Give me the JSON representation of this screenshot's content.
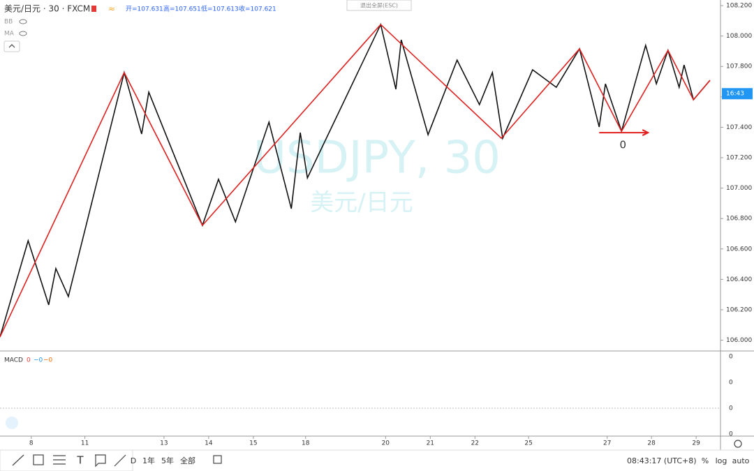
{
  "header": {
    "symbol": "美元/日元 · 30 · FXCM",
    "ohlc": [
      "开=107.631",
      "高=107.651",
      "低=107.613",
      "收=107.621"
    ],
    "indicators": [
      "BB",
      "MA"
    ],
    "exit_fullscreen": "退出全屏(ESC)"
  },
  "chart_data": {
    "type": "line",
    "watermark": "USDJPY, 30",
    "watermark_sub": "美元/日元",
    "xlim": [
      0,
      16.125
    ],
    "ylim": [
      105.929,
      108.237
    ],
    "xticks": [
      {
        "value": 0.7,
        "label": "8"
      },
      {
        "value": 1.9,
        "label": "11"
      },
      {
        "value": 3.67,
        "label": "13"
      },
      {
        "value": 4.67,
        "label": "14"
      },
      {
        "value": 5.67,
        "label": "15"
      },
      {
        "value": 6.84,
        "label": "18"
      },
      {
        "value": 8.63,
        "label": "20"
      },
      {
        "value": 9.63,
        "label": "21"
      },
      {
        "value": 10.63,
        "label": "22"
      },
      {
        "value": 11.83,
        "label": "25"
      },
      {
        "value": 13.59,
        "label": "27"
      },
      {
        "value": 14.58,
        "label": "28"
      },
      {
        "value": 15.58,
        "label": "29"
      }
    ],
    "yticks": [
      {
        "value": 106,
        "label": "106.000"
      },
      {
        "value": 106.2,
        "label": "106.200"
      },
      {
        "value": 106.4,
        "label": "106.400"
      },
      {
        "value": 106.6,
        "label": "106.600"
      },
      {
        "value": 106.8,
        "label": "106.800"
      },
      {
        "value": 107,
        "label": "107.000"
      },
      {
        "value": 107.2,
        "label": "107.200"
      },
      {
        "value": 107.4,
        "label": "107.400"
      },
      {
        "value": 107.6,
        "label": "107.600"
      },
      {
        "value": 107.8,
        "label": "107.800"
      },
      {
        "value": 108,
        "label": "108.000"
      },
      {
        "value": 108.2,
        "label": "108.200"
      }
    ],
    "series": [
      {
        "color": "#111111",
        "x": [
          0,
          0.63,
          1.09,
          1.25,
          1.53,
          2.78,
          3.17,
          3.33,
          4.53,
          4.89,
          5.27,
          6.02,
          6.52,
          6.72,
          6.88,
          8.52,
          8.86,
          8.98,
          9.58,
          10.23,
          10.73,
          11.02,
          11.25,
          11.92,
          12.45,
          12.97,
          13.41,
          13.55,
          13.91,
          14.45,
          14.69,
          14.95,
          15.2,
          15.31,
          15.52,
          15.89
        ],
        "values": [
          106.021,
          106.654,
          106.232,
          106.471,
          106.287,
          107.76,
          107.356,
          107.631,
          106.755,
          107.058,
          106.778,
          107.434,
          106.865,
          107.365,
          107.067,
          108.076,
          107.65,
          107.975,
          107.351,
          107.842,
          107.549,
          107.76,
          107.328,
          107.778,
          107.663,
          107.916,
          107.402,
          107.686,
          107.374,
          107.939,
          107.686,
          107.906,
          107.663,
          107.81,
          107.581,
          107.709
        ]
      },
      {
        "color": "#e02020",
        "x": [
          0,
          2.78,
          4.53,
          8.52,
          11.22,
          12.97,
          13.91,
          14.95,
          15.52,
          15.89
        ],
        "values": [
          106.021,
          107.76,
          106.755,
          108.076,
          107.328,
          107.916,
          107.374,
          107.906,
          107.581,
          107.709
        ]
      }
    ],
    "last_price": 107.621,
    "countdown": "16:43",
    "annotation": {
      "text": "0",
      "x": 13.91,
      "y": 107.374
    }
  },
  "macd": {
    "label": "MACD",
    "values": [
      "0",
      "−0",
      "−0"
    ],
    "axis_labels": [
      "0",
      "0",
      "0",
      "0"
    ]
  },
  "toolbar": {
    "ranges": [
      "D",
      "1年",
      "5年",
      "全部"
    ],
    "time": "08:43:17 (UTC+8)",
    "options": [
      "%",
      "log",
      "auto"
    ]
  }
}
